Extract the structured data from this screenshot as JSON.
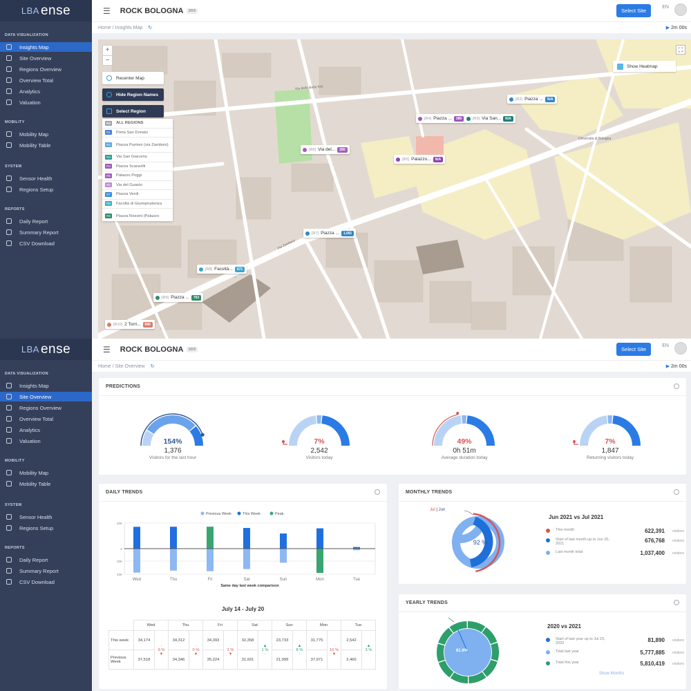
{
  "app": {
    "logo_text": "ense",
    "logo_prefix": "LBA",
    "site_name": "ROCK BOLOGNA",
    "site_code": "3805",
    "select_site": "Select Site",
    "lang": "EN",
    "timer": "2m 00s"
  },
  "sidebar": {
    "sections": [
      {
        "title": "DATA VISUALIZATION",
        "items": [
          "Insights Map",
          "Site Overview",
          "Regions Overview",
          "Overview Total",
          "Analytics",
          "Valuation"
        ]
      },
      {
        "title": "MOBILITY",
        "items": [
          "Mobility Map",
          "Mobility Table"
        ]
      },
      {
        "title": "SYSTEM",
        "items": [
          "Sensor Health",
          "Regions Setup"
        ]
      },
      {
        "title": "REPORTS",
        "items": [
          "Daily Report",
          "Summary Report",
          "CSV Download"
        ]
      }
    ]
  },
  "screen1": {
    "breadcrumb": [
      "Home",
      "/",
      "Insights Map"
    ],
    "active_item": "Insights Map",
    "map": {
      "zoom_in": "+",
      "zoom_out": "−",
      "recenter": "Recenter Map",
      "hide_names": "Hide Region Names",
      "select_region": "Select Region",
      "show_heatmap": "Show Heatmap",
      "regions": [
        {
          "code": "R0",
          "name": "ALL REGIONS",
          "color": "#9aa3b2"
        },
        {
          "code": "R1",
          "name": "Porta San Donato",
          "color": "#4a7fd6"
        },
        {
          "code": "R2",
          "name": "Piazza Puntoni (via Zamboni)",
          "color": "#5ba7e0"
        },
        {
          "code": "R3",
          "name": "Via San Giacomo",
          "color": "#2a9d8f"
        },
        {
          "code": "R4",
          "name": "Piazza Scaravilli",
          "color": "#9b59b6"
        },
        {
          "code": "R5",
          "name": "Palazzo Poggi",
          "color": "#a55bc0"
        },
        {
          "code": "R6",
          "name": "Via del Guasto",
          "color": "#c08ad6"
        },
        {
          "code": "R7",
          "name": "Piazza Verdi",
          "color": "#3a8fd8"
        },
        {
          "code": "R8",
          "name": "Facoltà di Giurisprudenza",
          "color": "#3ab0c9"
        },
        {
          "code": "R9",
          "name": "Piazza Rossini (Palazzo",
          "color": "#2e8b68"
        }
      ],
      "markers": [
        {
          "code": "[R2]",
          "name": "Piazza ...",
          "badge": "N/A",
          "color": "#2f86c9"
        },
        {
          "code": "[R4]",
          "name": "Piazza ...",
          "badge": "380",
          "color": "#9b59b6"
        },
        {
          "code": "[R3]",
          "name": "Via San...",
          "badge": "N/A",
          "color": "#1e7f7a"
        },
        {
          "code": "[R6]",
          "name": "Via del...",
          "badge": "280",
          "color": "#a55bc0"
        },
        {
          "code": "[R5]",
          "name": "Palazzo...",
          "badge": "N/A",
          "color": "#8e44ad"
        },
        {
          "code": "[R7]",
          "name": "Piazza ...",
          "badge": "1,091",
          "color": "#2f86c9"
        },
        {
          "code": "[R8]",
          "name": "Facoltà...",
          "badge": "671",
          "color": "#3aa3c9"
        },
        {
          "code": "[R9]",
          "name": "Piazza ...",
          "badge": "763",
          "color": "#2e8b68"
        },
        {
          "code": "[R10]",
          "name": "2 Torri...",
          "badge": "696",
          "color": "#d97b6c"
        }
      ]
    }
  },
  "screen2": {
    "breadcrumb": [
      "Home",
      "/",
      "Site Overview"
    ],
    "active_item": "Site Overview",
    "predictions": {
      "title": "PREDICTIONS",
      "gauges": [
        {
          "percent": "154%",
          "value": "1,376",
          "label": "Visitors for the last hour",
          "fill": 1.54,
          "color": "#2f5597"
        },
        {
          "percent": "7%",
          "value": "2,542",
          "label": "Visitors today",
          "fill": 0.07,
          "color": "#d9534f"
        },
        {
          "percent": "49%",
          "value": "0h 51m",
          "label": "Average duration today",
          "fill": 0.49,
          "color": "#d9534f"
        },
        {
          "percent": "7%",
          "value": "1,847",
          "label": "Returning visitors today",
          "fill": 0.07,
          "color": "#d9534f"
        }
      ]
    },
    "daily": {
      "title": "DAILY TRENDS",
      "legend": [
        "Previous Week",
        "This Week",
        "Peak"
      ],
      "xlabel": "Same day last week comparison",
      "range_title": "July 14 - July 20",
      "row_labels": [
        "This week",
        "Previous Week"
      ],
      "days": [
        {
          "day": "Wed",
          "this": "34,174",
          "prev": "37,518",
          "pct": "9 %",
          "dir": "down"
        },
        {
          "day": "Thu",
          "this": "34,312",
          "prev": "34,346",
          "pct": "0 %",
          "dir": "down"
        },
        {
          "day": "Fri",
          "this": "34,393",
          "prev": "35,224",
          "pct": "2 %",
          "dir": "down"
        },
        {
          "day": "Sat",
          "this": "32,358",
          "prev": "31,931",
          "pct": "1 %",
          "dir": "up"
        },
        {
          "day": "Sun",
          "this": "23,733",
          "prev": "21,999",
          "pct": "8 %",
          "dir": "up"
        },
        {
          "day": "Mon",
          "this": "31,775",
          "prev": "37,971",
          "pct": "16 %",
          "dir": "down"
        },
        {
          "day": "Tue",
          "this": "2,542",
          "prev": "2,466",
          "pct": "3 %",
          "dir": "up"
        }
      ]
    },
    "monthly": {
      "title": "MONTHLY TRENDS",
      "tag_a": "Jul",
      "tag_b": "Jun",
      "center": "92 %",
      "heading": "Jun 2021 vs Jul 2021",
      "rows": [
        {
          "label": "This month",
          "value": "622,391",
          "unit": "visitors",
          "color": "#d9534f"
        },
        {
          "label": "Start of last month up to Jun 20, 2021",
          "value": "676,768",
          "unit": "visitors",
          "color": "#1f6fd8"
        },
        {
          "label": "Last month total",
          "value": "1,037,400",
          "unit": "visitors",
          "color": "#7fb0f0"
        }
      ]
    },
    "yearly": {
      "title": "YEARLY TRENDS",
      "center": "81.9%",
      "heading": "2020 vs 2021",
      "rows": [
        {
          "label": "Start of last year up to Jul 20, 2020",
          "value": "81,890",
          "unit": "visitors",
          "color": "#1f6fd8"
        },
        {
          "label": "Total last year",
          "value": "5,777,885",
          "unit": "visitors",
          "color": "#7fb0f0"
        },
        {
          "label": "Total this year",
          "value": "5,810,419",
          "unit": "visitors",
          "color": "#2e9e6b"
        }
      ],
      "show_months": "Show Months"
    }
  },
  "chart_data": {
    "type": "bar",
    "categories": [
      "Wed",
      "Thu",
      "Fri",
      "Sat",
      "Sun",
      "Mon",
      "Tue"
    ],
    "series": [
      {
        "name": "This Week",
        "values": [
          34174,
          34312,
          34393,
          32358,
          23733,
          31775,
          2542
        ]
      },
      {
        "name": "Previous Week",
        "values": [
          37518,
          34346,
          35224,
          31931,
          21999,
          37971,
          2466
        ]
      }
    ],
    "peak": {
      "This Week": "Fri",
      "Previous Week": "Mon"
    },
    "xlabel": "Same day last week comparison",
    "ylim": [
      -40000,
      40000
    ],
    "legend": "top",
    "colors": {
      "Previous Week": "#8db8f2",
      "This Week": "#1f6fe0",
      "Peak": "#3aa570"
    }
  }
}
